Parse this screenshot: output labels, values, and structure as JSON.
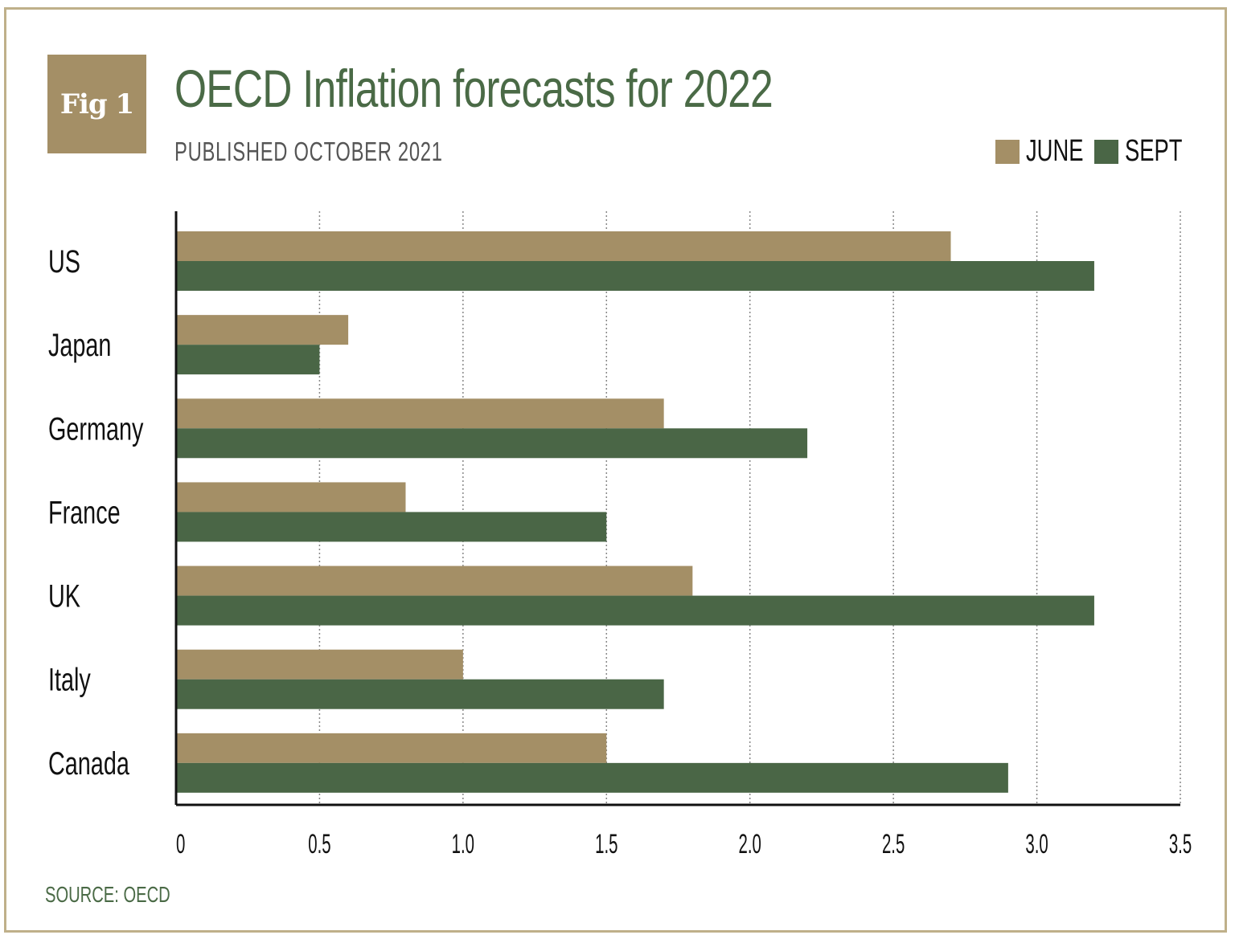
{
  "figure": {
    "badge": "Fig 1",
    "title": "OECD Inflation forecasts for 2022",
    "subtitle": "PUBLISHED OCTOBER 2021",
    "source": "SOURCE: OECD"
  },
  "colors": {
    "june": "#a48f66",
    "sept": "#4a6646",
    "title": "#4a6a46",
    "border": "#bfb08a"
  },
  "chart_data": {
    "type": "bar",
    "orientation": "horizontal",
    "title": "OECD Inflation forecasts for 2022",
    "subtitle": "PUBLISHED OCTOBER 2021",
    "xlabel": "",
    "ylabel": "",
    "xlim": [
      0,
      3.5
    ],
    "xticks": [
      0,
      0.5,
      1.0,
      1.5,
      2.0,
      2.5,
      3.0,
      3.5
    ],
    "xtick_labels": [
      "0",
      "0.5",
      "1.0",
      "1.5",
      "2.0",
      "2.5",
      "3.0",
      "3.5"
    ],
    "grid": true,
    "legend_position": "top-right",
    "categories": [
      "US",
      "Japan",
      "Germany",
      "France",
      "UK",
      "Italy",
      "Canada"
    ],
    "series": [
      {
        "name": "JUNE",
        "values": [
          2.7,
          0.6,
          1.7,
          0.8,
          1.8,
          1.0,
          1.5
        ]
      },
      {
        "name": "SEPT",
        "values": [
          3.2,
          0.5,
          2.2,
          1.5,
          3.2,
          1.7,
          2.9
        ]
      }
    ],
    "source": "SOURCE: OECD"
  }
}
